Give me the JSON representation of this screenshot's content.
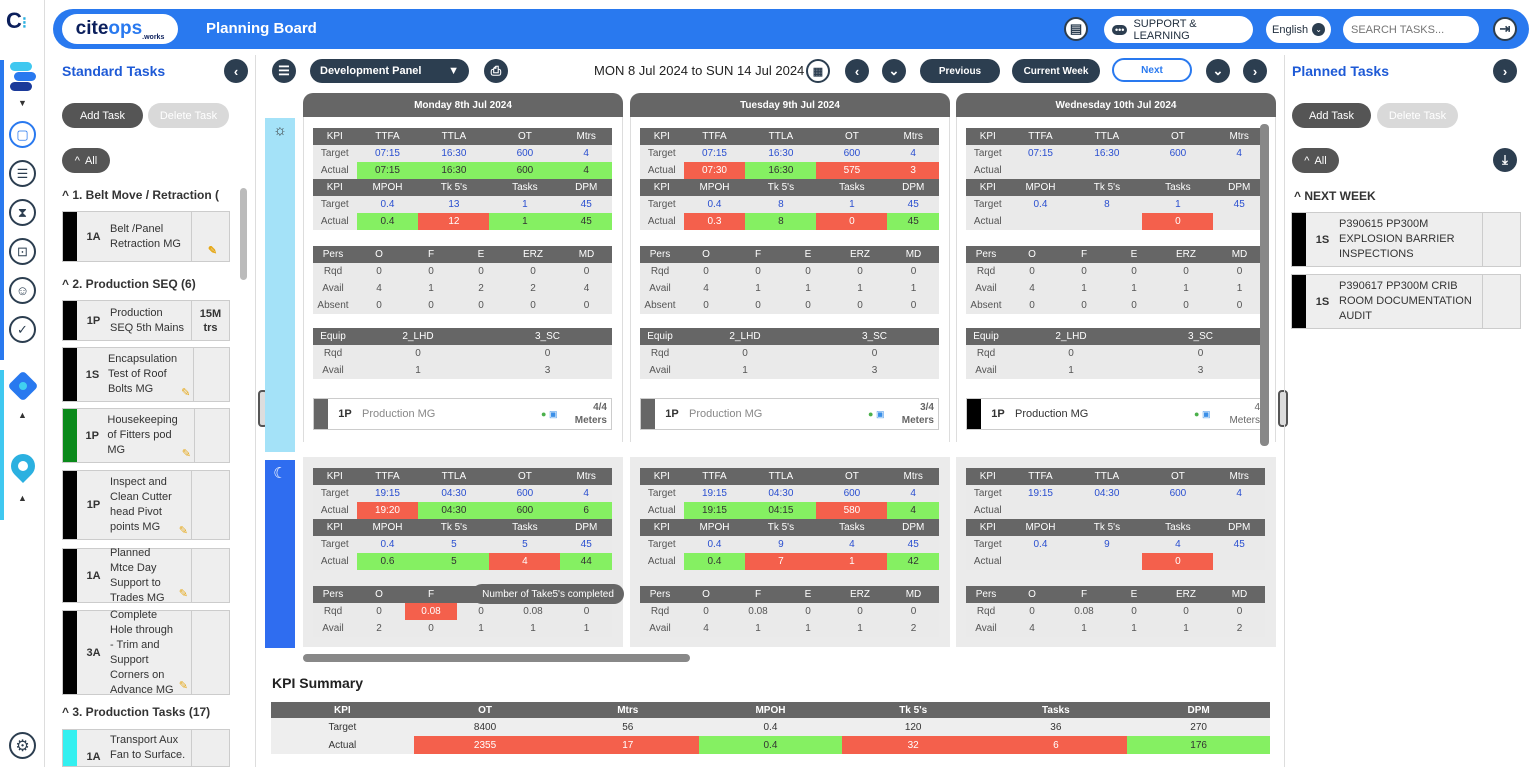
{
  "header": {
    "brand": "cite",
    "brand2": "ops",
    "brand_sub": ".works",
    "title": "Planning Board",
    "support_label": "SUPPORT & LEARNING",
    "language": "English",
    "search_placeholder": "SEARCH TASKS..."
  },
  "left_panel": {
    "title": "Standard Tasks",
    "add_label": "Add Task",
    "delete_label": "Delete Task",
    "all_label": "All",
    "groups": [
      "1. Belt Move / Retraction (",
      "2. Production SEQ (6)",
      "3. Production Tasks (17)"
    ],
    "tasks": [
      {
        "code": "1A",
        "label": "Belt /Panel Retraction MG",
        "color": "#000000",
        "aux": ""
      },
      {
        "code": "1P",
        "label": "Production SEQ 5th Mains",
        "color": "#000000",
        "aux": "15M trs"
      },
      {
        "code": "1S",
        "label": "Encapsulation Test of Roof Bolts MG",
        "color": "#000000",
        "aux": ""
      },
      {
        "code": "1P",
        "label": "Housekeeping of Fitters pod MG",
        "color": "#0a8a1a",
        "aux": ""
      },
      {
        "code": "1P",
        "label": "Inspect and Clean Cutter head Pivot points MG",
        "color": "#000000",
        "aux": ""
      },
      {
        "code": "1A",
        "label": "Planned Mtce Day Support to Trades MG",
        "color": "#000000",
        "aux": ""
      },
      {
        "code": "3A",
        "label": "Complete Hole through - Trim and Support Corners on Advance MG",
        "color": "#000000",
        "aux": ""
      },
      {
        "code": "1A",
        "label": "Transport Aux Fan to Surface.",
        "color": "#33f0f0",
        "aux": ""
      }
    ]
  },
  "toolbar": {
    "panel": "Development Panel",
    "date_range": "MON 8 Jul 2024 to SUN 14 Jul 2024",
    "previous": "Previous",
    "current_week": "Current Week",
    "next": "Next"
  },
  "right_panel": {
    "title": "Planned Tasks",
    "add_label": "Add Task",
    "delete_label": "Delete Task",
    "all_label": "All",
    "group": "NEXT WEEK",
    "tasks": [
      {
        "code": "1S",
        "label": "P390615 PP300M EXPLOSION BARRIER INSPECTIONS"
      },
      {
        "code": "1S",
        "label": "P390617 PP300M CRIB ROOM DOCUMENTATION AUDIT"
      }
    ]
  },
  "kpi_headers": {
    "kpi1": [
      "KPI",
      "TTFA",
      "TTLA",
      "OT",
      "Mtrs"
    ],
    "kpi2": [
      "KPI",
      "MPOH",
      "Tk 5's",
      "Tasks",
      "DPM"
    ],
    "pers": [
      "Pers",
      "O",
      "F",
      "E",
      "ERZ",
      "MD"
    ],
    "equip": [
      "Equip",
      "2_LHD",
      "3_SC"
    ],
    "row_target": "Target",
    "row_actual": "Actual",
    "row_rqd": "Rqd",
    "row_avail": "Avail",
    "row_absent": "Absent"
  },
  "days": [
    {
      "title": "Monday 8th Jul 2024",
      "day": {
        "t1": [
          "07:15",
          "16:30",
          "600",
          "4"
        ],
        "a1": [
          "07:15",
          "16:30",
          "600",
          "4"
        ],
        "a1s": [
          "g",
          "g",
          "g",
          "g"
        ],
        "t2": [
          "0.4",
          "13",
          "1",
          "45"
        ],
        "a2": [
          "0.4",
          "12",
          "1",
          "45"
        ],
        "a2s": [
          "g",
          "rd",
          "g",
          "g"
        ],
        "rqd": [
          "0",
          "0",
          "0",
          "0",
          "0"
        ],
        "avail": [
          "4",
          "1",
          "2",
          "2",
          "4"
        ],
        "absent": [
          "0",
          "0",
          "0",
          "0",
          "0"
        ],
        "erqd": [
          "0",
          "0"
        ],
        "eavail": [
          "1",
          "3"
        ],
        "task": {
          "code": "1P",
          "label": "Production MG",
          "qty": "4/4",
          "unit": "Meters",
          "color": "#666666"
        }
      },
      "night": {
        "t1": [
          "19:15",
          "04:30",
          "600",
          "4"
        ],
        "a1": [
          "19:20",
          "04:30",
          "600",
          "6"
        ],
        "a1s": [
          "rd",
          "g",
          "g",
          "g"
        ],
        "t2": [
          "0.4",
          "5",
          "5",
          "45"
        ],
        "a2": [
          "0.6",
          "5",
          "4",
          "44"
        ],
        "a2s": [
          "g",
          "g",
          "rd",
          "g"
        ],
        "rqd": [
          "0",
          "0.08",
          "0",
          "0.08",
          "0"
        ],
        "avail": [
          "2",
          "0",
          "1",
          "1",
          "1"
        ]
      }
    },
    {
      "title": "Tuesday 9th Jul 2024",
      "day": {
        "t1": [
          "07:15",
          "16:30",
          "600",
          "4"
        ],
        "a1": [
          "07:30",
          "16:30",
          "575",
          "3"
        ],
        "a1s": [
          "rd",
          "g",
          "rd",
          "rd"
        ],
        "t2": [
          "0.4",
          "8",
          "1",
          "45"
        ],
        "a2": [
          "0.3",
          "8",
          "0",
          "45"
        ],
        "a2s": [
          "rd",
          "g",
          "rd",
          "g"
        ],
        "rqd": [
          "0",
          "0",
          "0",
          "0",
          "0"
        ],
        "avail": [
          "4",
          "1",
          "1",
          "1",
          "1"
        ],
        "absent": [
          "0",
          "0",
          "0",
          "0",
          "0"
        ],
        "erqd": [
          "0",
          "0"
        ],
        "eavail": [
          "1",
          "3"
        ],
        "task": {
          "code": "1P",
          "label": "Production MG",
          "qty": "3/4",
          "unit": "Meters",
          "color": "#666666"
        }
      },
      "night": {
        "t1": [
          "19:15",
          "04:30",
          "600",
          "4"
        ],
        "a1": [
          "19:15",
          "04:15",
          "580",
          "4"
        ],
        "a1s": [
          "g",
          "g",
          "rd",
          "g"
        ],
        "t2": [
          "0.4",
          "9",
          "4",
          "45"
        ],
        "a2": [
          "0.4",
          "7",
          "1",
          "42"
        ],
        "a2s": [
          "g",
          "rd",
          "rd",
          "g"
        ],
        "rqd": [
          "0",
          "0.08",
          "0",
          "0",
          "0"
        ],
        "avail": [
          "4",
          "1",
          "1",
          "1",
          "2"
        ]
      }
    },
    {
      "title": "Wednesday 10th Jul 2024",
      "day": {
        "t1": [
          "07:15",
          "16:30",
          "600",
          "4"
        ],
        "a1": [
          "",
          "",
          "",
          ""
        ],
        "a1s": [
          "",
          "",
          "",
          ""
        ],
        "t2": [
          "0.4",
          "8",
          "1",
          "45"
        ],
        "a2": [
          "",
          "",
          "0",
          ""
        ],
        "a2s": [
          "",
          "",
          "rd",
          ""
        ],
        "rqd": [
          "0",
          "0",
          "0",
          "0",
          "0"
        ],
        "avail": [
          "4",
          "1",
          "1",
          "1",
          "1"
        ],
        "absent": [
          "0",
          "0",
          "0",
          "0",
          "0"
        ],
        "erqd": [
          "0",
          "0"
        ],
        "eavail": [
          "1",
          "3"
        ],
        "task": {
          "code": "1P",
          "label": "Production MG",
          "qty": "4",
          "unit": "Meters",
          "color": "#000000"
        }
      },
      "night": {
        "t1": [
          "19:15",
          "04:30",
          "600",
          "4"
        ],
        "a1": [
          "",
          "",
          "",
          ""
        ],
        "a1s": [
          "",
          "",
          "",
          ""
        ],
        "t2": [
          "0.4",
          "9",
          "4",
          "45"
        ],
        "a2": [
          "",
          "",
          "0",
          ""
        ],
        "a2s": [
          "",
          "",
          "rd",
          ""
        ],
        "rqd": [
          "0",
          "0.08",
          "0",
          "0",
          "0"
        ],
        "avail": [
          "4",
          "1",
          "1",
          "1",
          "2"
        ]
      }
    }
  ],
  "tooltip": "Number of Take5's completed",
  "summary": {
    "title": "KPI Summary",
    "headers": [
      "KPI",
      "OT",
      "Mtrs",
      "MPOH",
      "Tk 5's",
      "Tasks",
      "DPM"
    ],
    "target": [
      "Target",
      "8400",
      "56",
      "0.4",
      "120",
      "36",
      "270"
    ],
    "actual": [
      "Actual",
      "2355",
      "17",
      "0.4",
      "32",
      "6",
      "176"
    ],
    "actual_status": [
      "",
      "rd",
      "rd",
      "g",
      "rd",
      "rd",
      "g"
    ]
  }
}
